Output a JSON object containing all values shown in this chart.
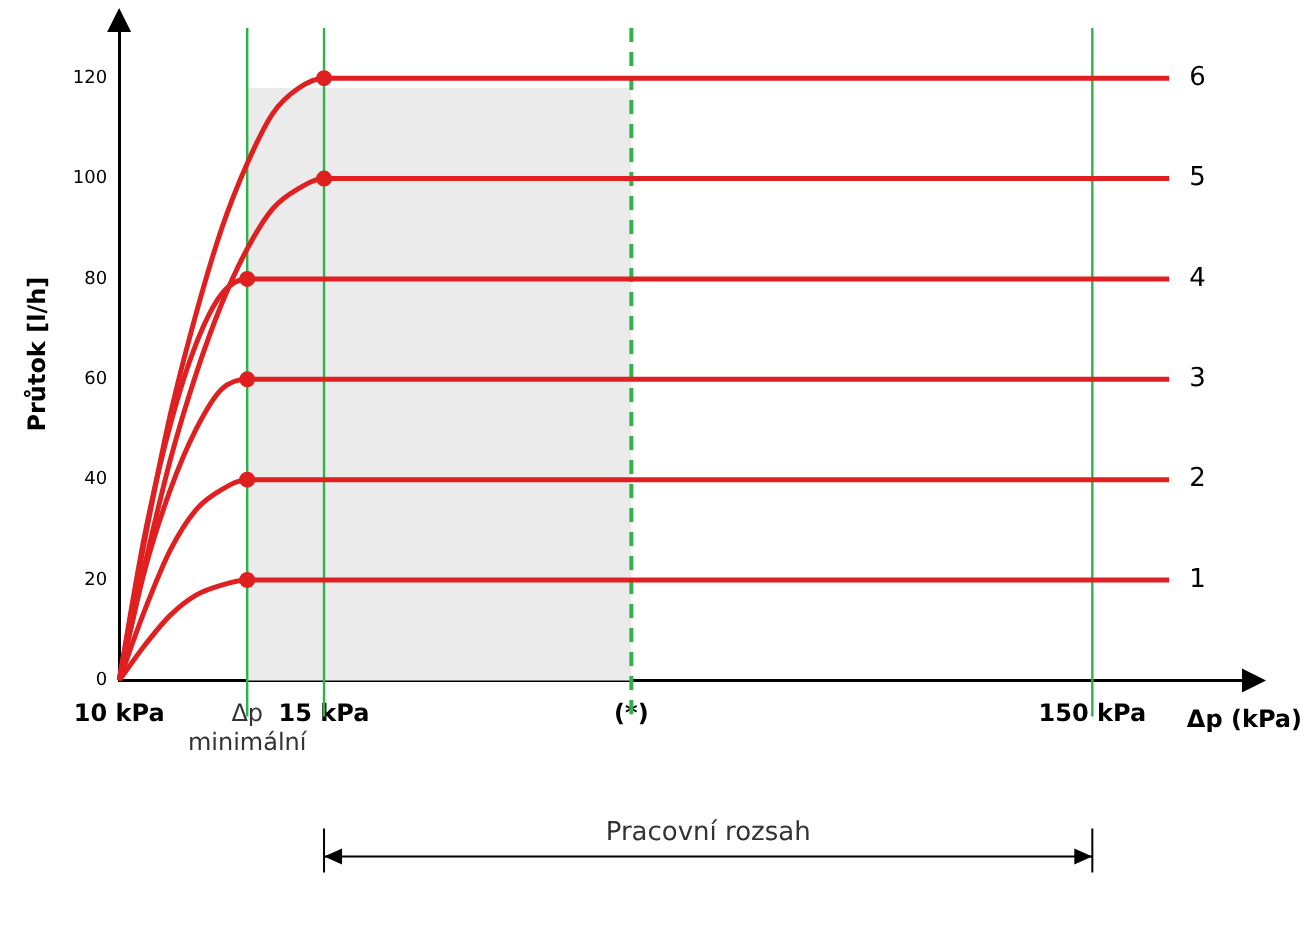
{
  "chart_data": {
    "type": "line",
    "ylabel": "Průtok [l/h]",
    "xlabel": "Δp (kPa)",
    "categories": [
      "10 kPa",
      null,
      null,
      null,
      null,
      "Δp minimální",
      null,
      null,
      "15 kPa",
      null,
      null,
      null,
      null,
      null,
      null,
      null,
      null,
      null,
      null,
      null,
      "(*)",
      null,
      null,
      null,
      null,
      null,
      null,
      null,
      null,
      null,
      null,
      null,
      null,
      null,
      null,
      null,
      null,
      null,
      "150 kPa",
      null,
      null,
      null,
      null,
      null,
      null
    ],
    "ylim": [
      0,
      130
    ],
    "yticks": [
      0,
      20,
      40,
      60,
      80,
      100,
      120
    ],
    "grid": false,
    "legend": false,
    "marker": "none",
    "line_style": "solid",
    "series": [
      {
        "name": "1",
        "color": "#e02020",
        "values": [
          0,
          7,
          13,
          17,
          19,
          20,
          20,
          20,
          20,
          20,
          20,
          20,
          20,
          20,
          20,
          20,
          20,
          20,
          20,
          20,
          20,
          20,
          20,
          20,
          20,
          20,
          20,
          20,
          20,
          20,
          20,
          20,
          20,
          20,
          20,
          20,
          20,
          20,
          20,
          20,
          20,
          20,
          null,
          null,
          null
        ]
      },
      {
        "name": "2",
        "color": "#e02020",
        "values": [
          0,
          14,
          26,
          34,
          38,
          40,
          40,
          40,
          40,
          40,
          40,
          40,
          40,
          40,
          40,
          40,
          40,
          40,
          40,
          40,
          40,
          40,
          40,
          40,
          40,
          40,
          40,
          40,
          40,
          40,
          40,
          40,
          40,
          40,
          40,
          40,
          40,
          40,
          40,
          40,
          40,
          40,
          null,
          null,
          null
        ]
      },
      {
        "name": "3",
        "color": "#e02020",
        "values": [
          0,
          22,
          38,
          50,
          58,
          60,
          60,
          60,
          60,
          60,
          60,
          60,
          60,
          60,
          60,
          60,
          60,
          60,
          60,
          60,
          60,
          60,
          60,
          60,
          60,
          60,
          60,
          60,
          60,
          60,
          60,
          60,
          60,
          60,
          60,
          60,
          60,
          60,
          60,
          60,
          60,
          60,
          null,
          null,
          null
        ]
      },
      {
        "name": "4",
        "color": "#e02020",
        "values": [
          0,
          29,
          51,
          67,
          77,
          80,
          80,
          80,
          80,
          80,
          80,
          80,
          80,
          80,
          80,
          80,
          80,
          80,
          80,
          80,
          80,
          80,
          80,
          80,
          80,
          80,
          80,
          80,
          80,
          80,
          80,
          80,
          80,
          80,
          80,
          80,
          80,
          80,
          80,
          80,
          80,
          80,
          null,
          null,
          null
        ]
      },
      {
        "name": "5",
        "color": "#e02020",
        "values": [
          0,
          23,
          44,
          61,
          75,
          86,
          94,
          98,
          100,
          100,
          100,
          100,
          100,
          100,
          100,
          100,
          100,
          100,
          100,
          100,
          100,
          100,
          100,
          100,
          100,
          100,
          100,
          100,
          100,
          100,
          100,
          100,
          100,
          100,
          100,
          100,
          100,
          100,
          100,
          100,
          100,
          100,
          null,
          null,
          null
        ]
      },
      {
        "name": "6",
        "color": "#e02020",
        "values": [
          0,
          28,
          53,
          73,
          90,
          103,
          113,
          118,
          120,
          120,
          120,
          120,
          120,
          120,
          120,
          120,
          120,
          120,
          120,
          120,
          120,
          120,
          120,
          120,
          120,
          120,
          120,
          120,
          120,
          120,
          120,
          120,
          120,
          120,
          120,
          120,
          120,
          120,
          120,
          120,
          120,
          120,
          null,
          null,
          null
        ]
      },
      {
        "type": "scatter",
        "marker": "circle",
        "color": "#e02020",
        "x": [
          "Δp minimální",
          "Δp minimální",
          "Δp minimální",
          "Δp minimální",
          "15 kPa",
          "15 kPa"
        ],
        "values": [
          20,
          40,
          60,
          80,
          100,
          120
        ]
      }
    ],
    "ref_lines": [
      {
        "axis": "x",
        "value": "Δp minimální",
        "color": "#2db34a",
        "line_style": "solid"
      },
      {
        "axis": "x",
        "value": "15 kPa",
        "color": "#2db34a",
        "line_style": "solid"
      },
      {
        "axis": "x",
        "value": "(*)",
        "color": "#2db34a",
        "line_style": "dashed"
      },
      {
        "axis": "x",
        "value": "150 kPa",
        "color": "#2db34a",
        "line_style": "solid"
      }
    ],
    "bands": [
      {
        "axis": "x",
        "from": "Δp minimální",
        "to": "(*)",
        "color": "#ebebeb"
      }
    ],
    "annotations": [
      "Pracovní rozsah"
    ]
  }
}
